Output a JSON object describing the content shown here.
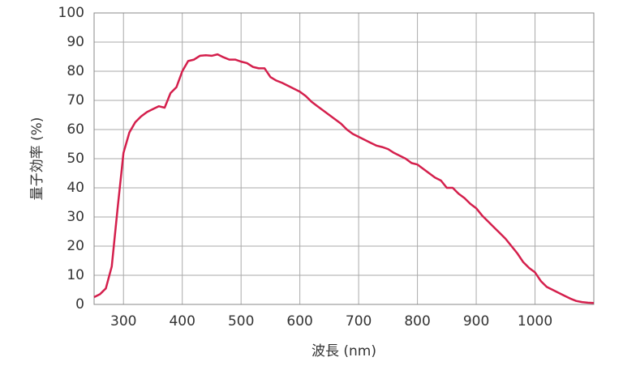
{
  "chart_data": {
    "type": "line",
    "x_label": "波長 (nm)",
    "y_label": "量子効率 (%)",
    "x": [
      250,
      260,
      270,
      280,
      290,
      300,
      310,
      320,
      330,
      340,
      350,
      360,
      370,
      380,
      390,
      400,
      410,
      420,
      430,
      440,
      450,
      460,
      470,
      480,
      490,
      500,
      510,
      520,
      530,
      540,
      550,
      560,
      570,
      580,
      590,
      600,
      610,
      620,
      630,
      640,
      650,
      660,
      670,
      680,
      690,
      700,
      710,
      720,
      730,
      740,
      750,
      760,
      770,
      780,
      790,
      800,
      810,
      820,
      830,
      840,
      850,
      860,
      870,
      880,
      890,
      900,
      910,
      920,
      930,
      940,
      950,
      960,
      970,
      980,
      990,
      1000,
      1010,
      1020,
      1030,
      1040,
      1050,
      1060,
      1070,
      1080,
      1090,
      1100
    ],
    "series": [
      {
        "color": "#d41f4c",
        "values": [
          2.5,
          3.5,
          5.5,
          13,
          33,
          52,
          59,
          62.5,
          64.5,
          66,
          67,
          68,
          67.5,
          72.5,
          74.5,
          80,
          83.5,
          84,
          85.3,
          85.5,
          85.3,
          85.8,
          84.8,
          84,
          84,
          83.3,
          82.8,
          81.5,
          81,
          81,
          78,
          76.8,
          76,
          75,
          74,
          73,
          71.5,
          69.5,
          68,
          66.5,
          65,
          63.5,
          62,
          60,
          58.5,
          57.5,
          56.5,
          55.5,
          54.5,
          54,
          53.3,
          52,
          51,
          50,
          48.5,
          48,
          46.5,
          45,
          43.5,
          42.5,
          40,
          40,
          38,
          36.5,
          34.5,
          33,
          30.5,
          28.5,
          26.5,
          24.5,
          22.5,
          20,
          17.5,
          14.5,
          12.5,
          11,
          8,
          6,
          5,
          4,
          3,
          2,
          1.2,
          0.8,
          0.6,
          0.5
        ]
      }
    ],
    "xlim": [
      250,
      1100
    ],
    "ylim": [
      0,
      100
    ],
    "xticks": [
      300,
      400,
      500,
      600,
      700,
      800,
      900,
      1000
    ],
    "yticks": [
      0,
      10,
      20,
      30,
      40,
      50,
      60,
      70,
      80,
      90,
      100
    ],
    "grid": true
  }
}
